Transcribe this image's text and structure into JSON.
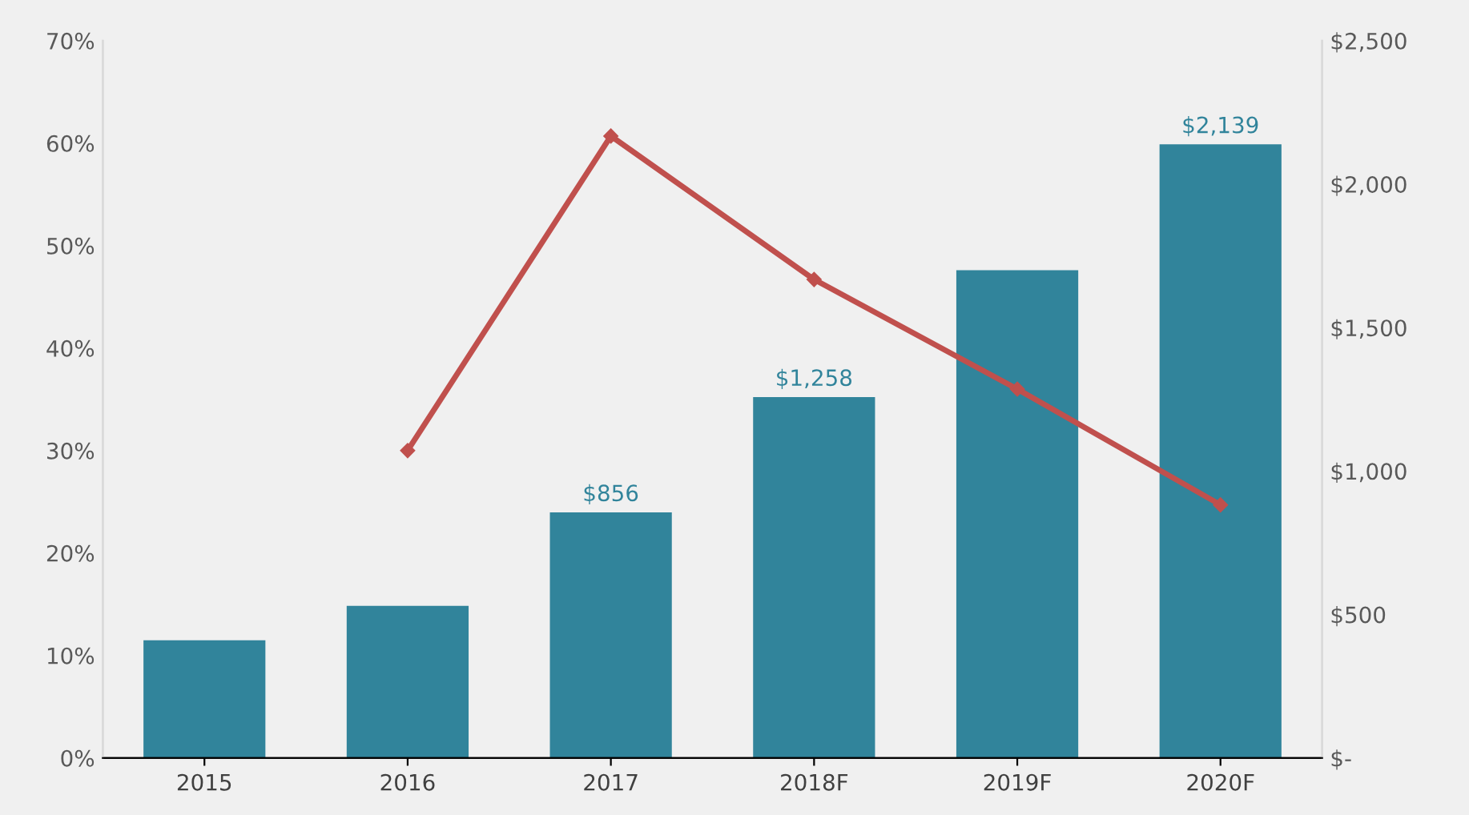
{
  "chart_data": {
    "type": "bar",
    "categories": [
      "2015",
      "2016",
      "2017",
      "2018F",
      "2019F",
      "2020F"
    ],
    "series": [
      {
        "axis": "y2",
        "color": "#31849b",
        "values": [
          410,
          530,
          856,
          1258,
          1700,
          2139
        ],
        "value_labels": [
          null,
          null,
          "$856",
          "$1,258",
          null,
          "$2,139"
        ]
      },
      {
        "type": "line",
        "axis": "y",
        "color": "#c0504d",
        "marker": "diamond",
        "values": [
          null,
          30,
          60.7,
          46.7,
          36,
          24.7
        ]
      }
    ],
    "ylim": [
      0,
      70
    ],
    "yticks": [
      {
        "value": 0,
        "label": "0%"
      },
      {
        "value": 10,
        "label": "10%"
      },
      {
        "value": 20,
        "label": "20%"
      },
      {
        "value": 30,
        "label": "30%"
      },
      {
        "value": 40,
        "label": "40%"
      },
      {
        "value": 50,
        "label": "50%"
      },
      {
        "value": 60,
        "label": "60%"
      },
      {
        "value": 70,
        "label": "70%"
      }
    ],
    "y2lim": [
      0,
      2500
    ],
    "y2ticks": [
      {
        "value": 0,
        "label": "$-"
      },
      {
        "value": 500,
        "label": "$500"
      },
      {
        "value": 1000,
        "label": "$1,000"
      },
      {
        "value": 1500,
        "label": "$1,500"
      },
      {
        "value": 2000,
        "label": "$2,000"
      },
      {
        "value": 2500,
        "label": "$2,500"
      }
    ],
    "grid": false,
    "legend": false
  }
}
